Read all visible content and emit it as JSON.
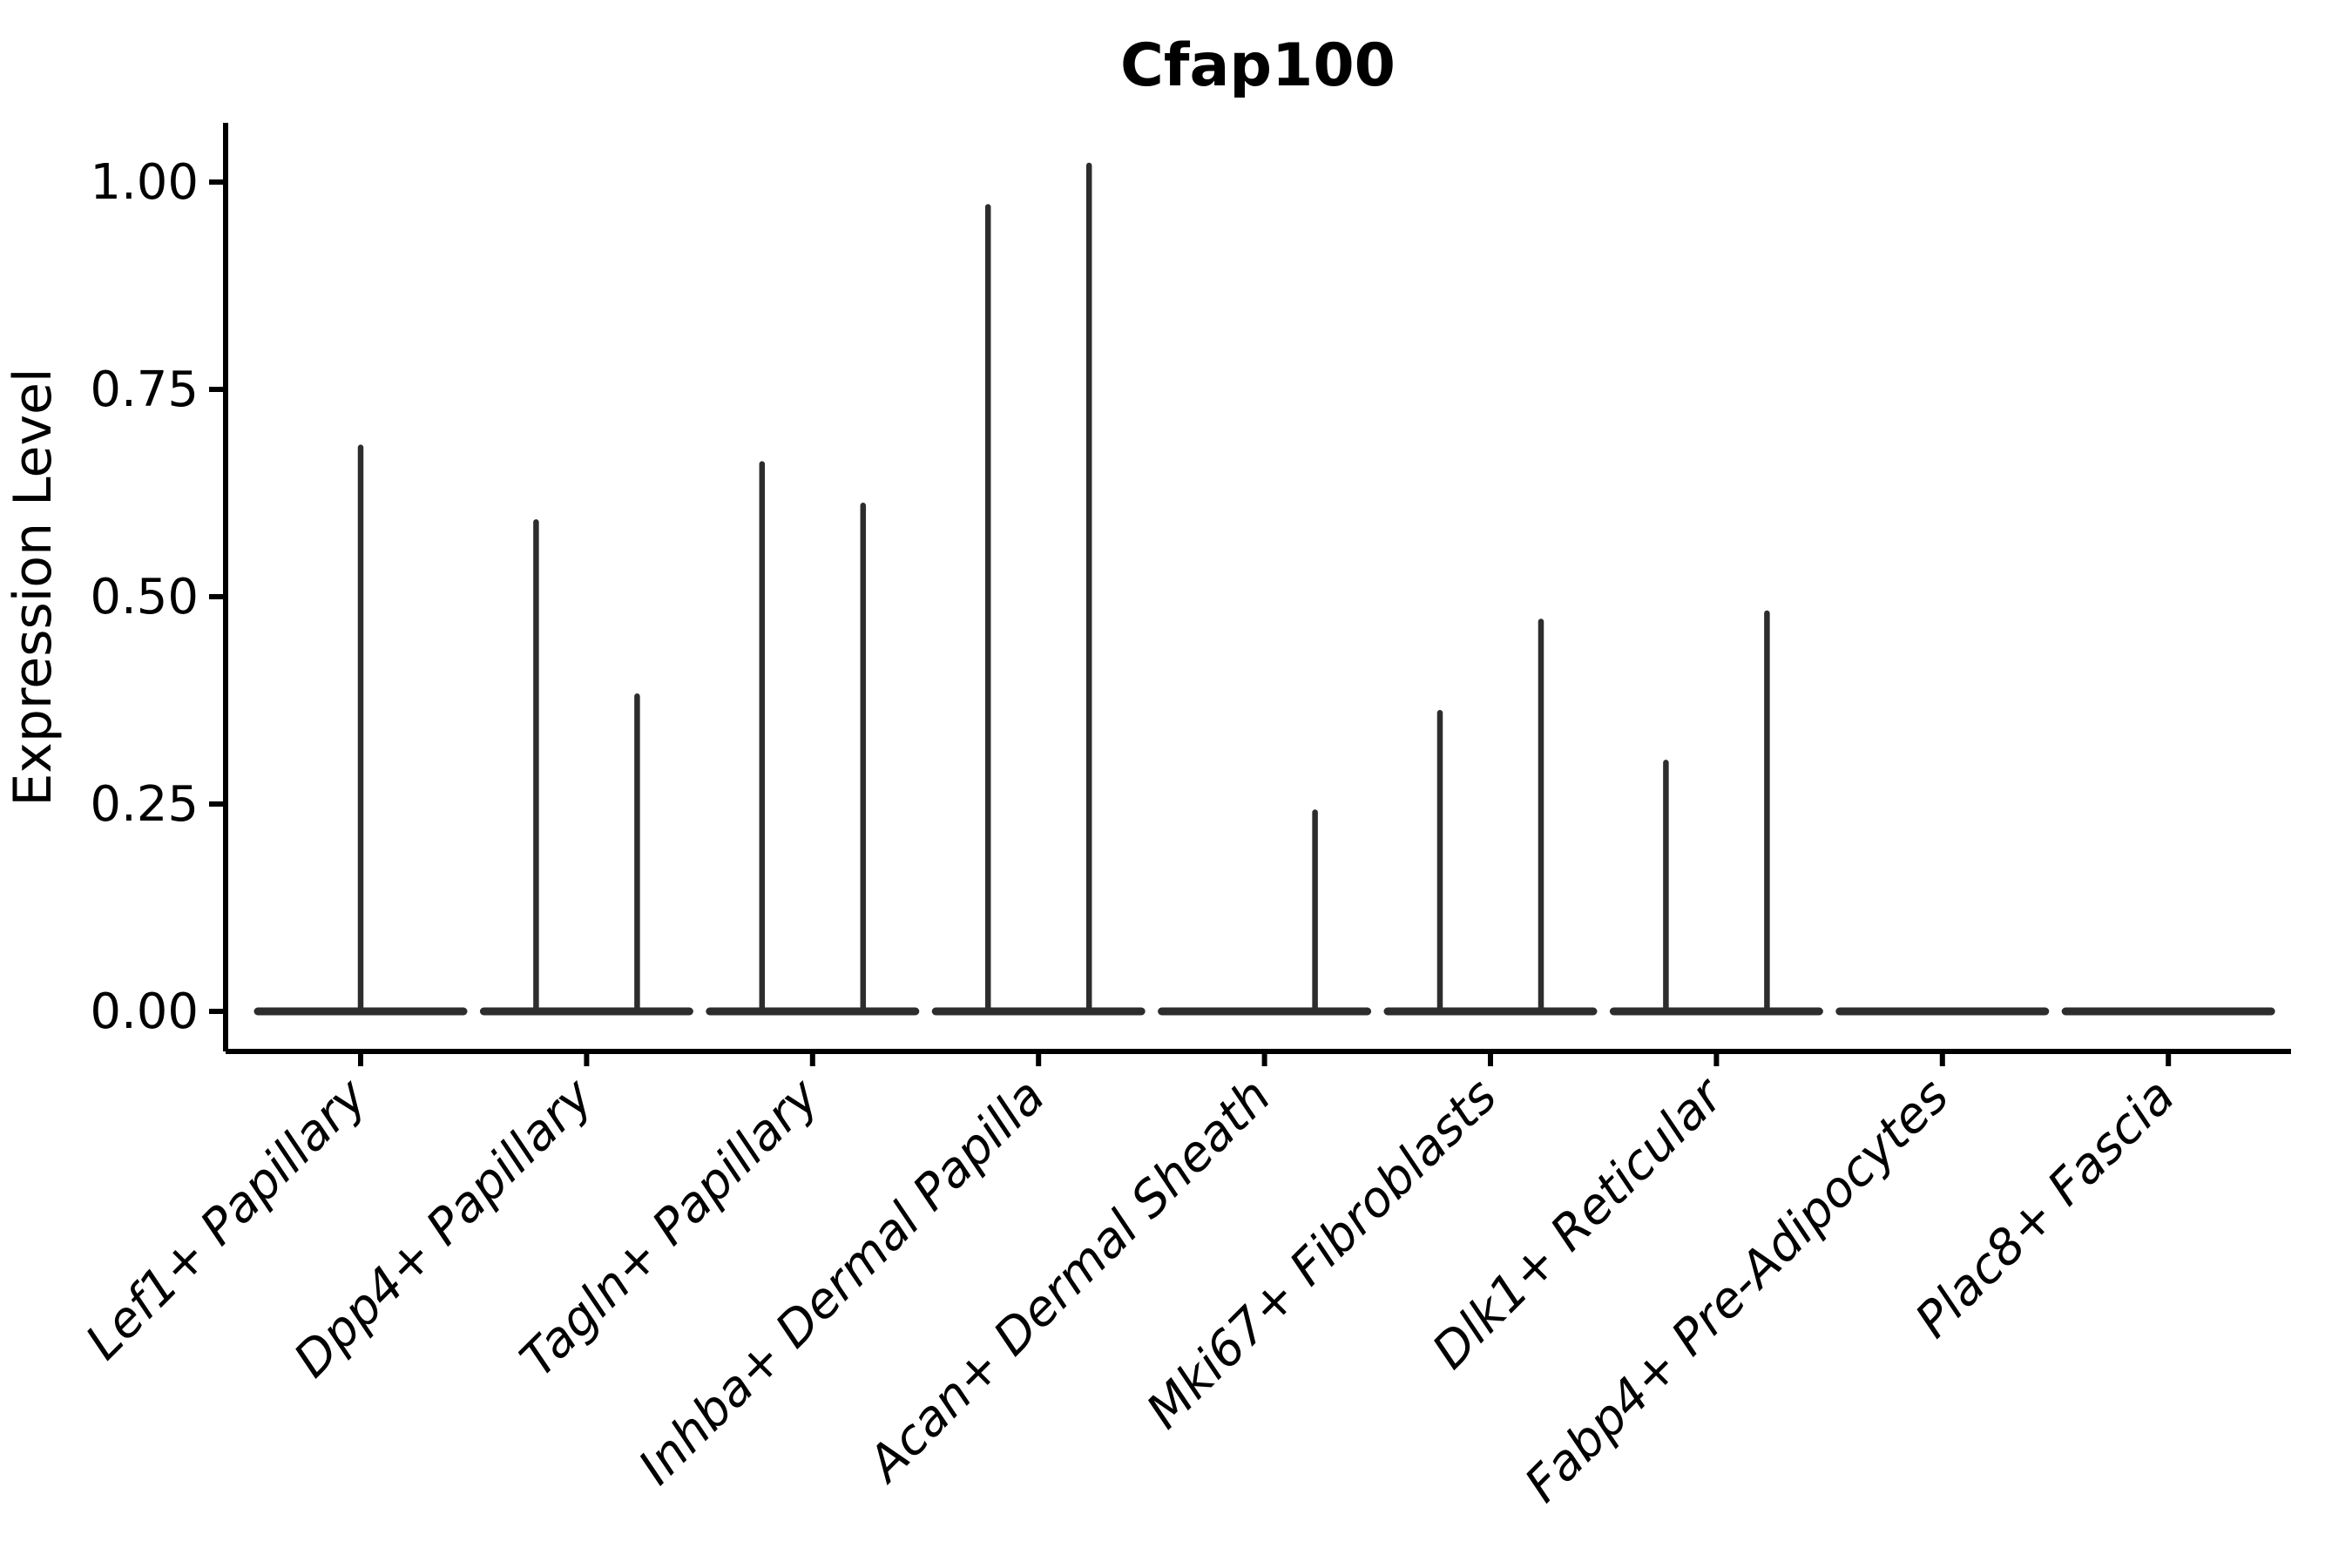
{
  "figure": {
    "title": "Cfap100",
    "ylabel": "Expression Level"
  },
  "colors": {
    "violin": "#2d2d2d",
    "axis": "#000000",
    "text": "#000000",
    "background": "#ffffff"
  },
  "chart_data": {
    "type": "violin",
    "title": "Cfap100",
    "xlabel": "",
    "ylabel": "Expression Level",
    "ylim": [
      -0.05,
      1.07
    ],
    "grid": false,
    "legend_position": "none",
    "ytick_labels": [
      "0.00",
      "0.25",
      "0.50",
      "0.75",
      "1.00"
    ],
    "ytick_values": [
      0,
      0.25,
      0.5,
      0.75,
      1.0
    ],
    "categories": [
      "Lef1+ Papillary",
      "Dpp4+ Papillary",
      "Tagln+ Papillary",
      "Inhba+ Dermal Papilla",
      "Acan+ Dermal Sheath",
      "Mki67+ Fibroblasts",
      "Dlk1+ Reticular",
      "Fabp4+ Pre-Adipocytes",
      "Plac8+ Fascia"
    ],
    "violins": [
      {
        "category": "Lef1+ Papillary",
        "baseline_value": 0,
        "spikes": [
          {
            "position": "center",
            "max": 0.68
          }
        ]
      },
      {
        "category": "Dpp4+ Papillary",
        "baseline_value": 0,
        "spikes": [
          {
            "position": "left",
            "max": 0.59
          },
          {
            "position": "right",
            "max": 0.38
          }
        ]
      },
      {
        "category": "Tagln+ Papillary",
        "baseline_value": 0,
        "spikes": [
          {
            "position": "left",
            "max": 0.66
          },
          {
            "position": "right",
            "max": 0.61
          }
        ]
      },
      {
        "category": "Inhba+ Dermal Papilla",
        "baseline_value": 0,
        "spikes": [
          {
            "position": "left",
            "max": 0.97
          },
          {
            "position": "right",
            "max": 1.02
          }
        ]
      },
      {
        "category": "Acan+ Dermal Sheath",
        "baseline_value": 0,
        "spikes": [
          {
            "position": "right",
            "max": 0.24
          }
        ]
      },
      {
        "category": "Mki67+ Fibroblasts",
        "baseline_value": 0,
        "spikes": [
          {
            "position": "left",
            "max": 0.36
          },
          {
            "position": "right",
            "max": 0.47
          }
        ]
      },
      {
        "category": "Dlk1+ Reticular",
        "baseline_value": 0,
        "spikes": [
          {
            "position": "left",
            "max": 0.3
          },
          {
            "position": "right",
            "max": 0.48
          }
        ]
      },
      {
        "category": "Fabp4+ Pre-Adipocytes",
        "baseline_value": 0,
        "spikes": []
      },
      {
        "category": "Plac8+ Fascia",
        "baseline_value": 0,
        "spikes": []
      }
    ]
  }
}
